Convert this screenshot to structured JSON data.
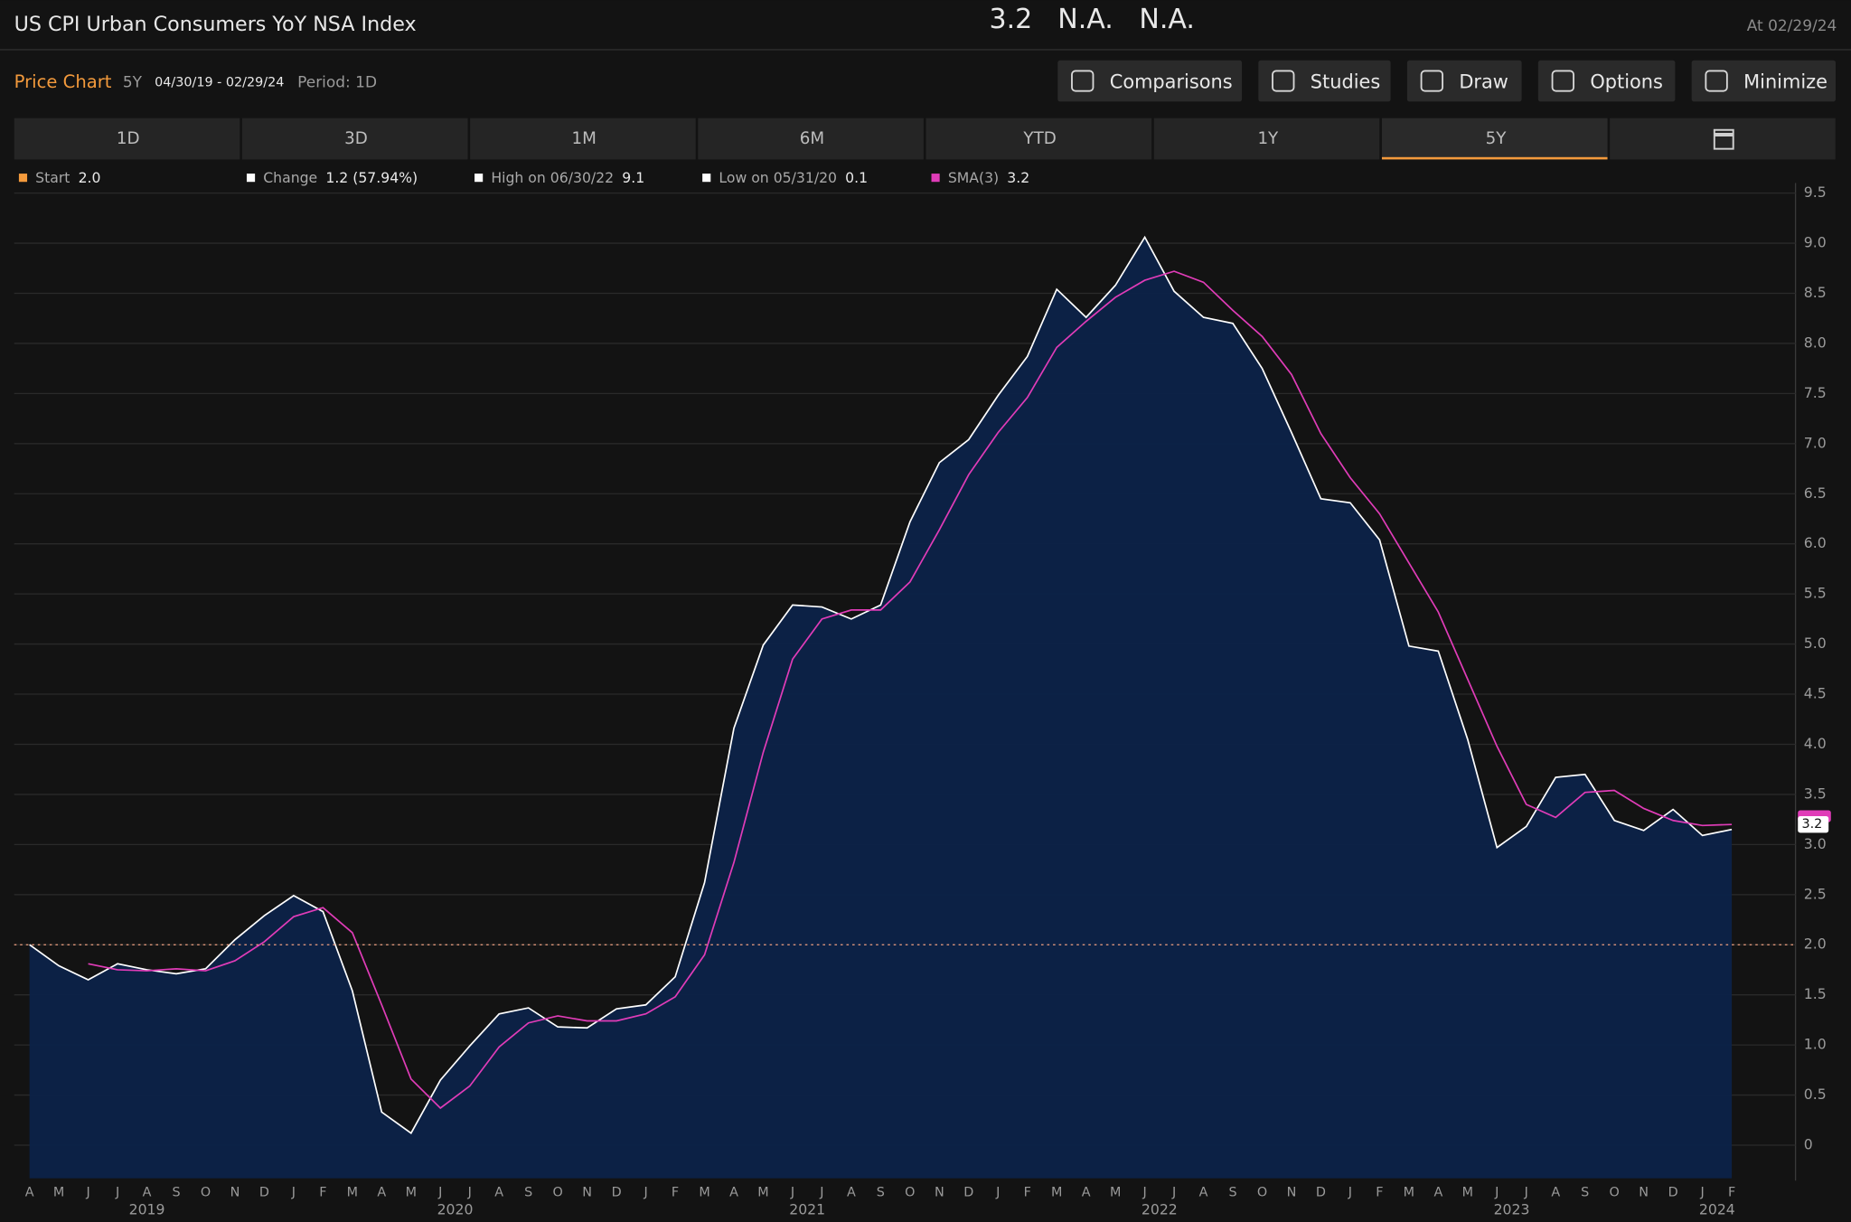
{
  "header": {
    "title": "US CPI Urban Consumers YoY NSA Index",
    "last": "3.2",
    "change": "N.A.",
    "pct_change": "N.A.",
    "as_of": "At 02/29/24"
  },
  "toolbar": {
    "label": "Price Chart",
    "range": "5Y",
    "dates": "04/30/19 - 02/29/24",
    "period": "Period: 1D",
    "buttons": [
      "Comparisons",
      "Studies",
      "Draw",
      "Options",
      "Minimize"
    ]
  },
  "tabs": {
    "items": [
      "1D",
      "3D",
      "1M",
      "6M",
      "YTD",
      "1Y",
      "5Y"
    ],
    "active": 6
  },
  "legend": [
    {
      "name": "Start",
      "value": "2.0",
      "color": "#f39a3c"
    },
    {
      "name": "Change",
      "value": "1.2 (57.94%)",
      "color": "#ffffff"
    },
    {
      "name": "High on 06/30/22",
      "value": "9.1",
      "color": "#ffffff"
    },
    {
      "name": "Low on 05/31/20",
      "value": "0.1",
      "color": "#ffffff"
    },
    {
      "name": "SMA(3)",
      "value": "3.2",
      "color": "#e03cb8"
    }
  ],
  "chart_data": {
    "type": "area",
    "categories": [
      "A",
      "M",
      "J",
      "J",
      "A",
      "S",
      "O",
      "N",
      "D",
      "J",
      "F",
      "M",
      "A",
      "M",
      "J",
      "J",
      "A",
      "S",
      "O",
      "N",
      "D",
      "J",
      "F",
      "M",
      "A",
      "M",
      "J",
      "J",
      "A",
      "S",
      "O",
      "N",
      "D",
      "J",
      "F",
      "M",
      "A",
      "M",
      "J",
      "J",
      "A",
      "S",
      "O",
      "N",
      "D",
      "J",
      "F",
      "M",
      "A",
      "M",
      "J",
      "J",
      "A",
      "S",
      "O",
      "N",
      "D",
      "J",
      "F"
    ],
    "years": [
      "2019",
      "2020",
      "2021",
      "2022",
      "2023",
      "2024"
    ],
    "series": [
      {
        "color": "#ffffff",
        "fill": "#0c2248",
        "values": [
          2.0,
          1.79,
          1.65,
          1.81,
          1.75,
          1.71,
          1.76,
          2.05,
          2.29,
          2.49,
          2.33,
          1.54,
          0.33,
          0.12,
          0.65,
          0.99,
          1.31,
          1.37,
          1.18,
          1.17,
          1.36,
          1.4,
          1.68,
          2.62,
          4.16,
          4.99,
          5.39,
          5.37,
          5.25,
          5.39,
          6.22,
          6.81,
          7.04,
          7.48,
          7.87,
          8.54,
          8.26,
          8.58,
          9.06,
          8.52,
          8.26,
          8.2,
          7.75,
          7.11,
          6.45,
          6.41,
          6.04,
          4.98,
          4.93,
          4.05,
          2.97,
          3.18,
          3.67,
          3.7,
          3.24,
          3.14,
          3.35,
          3.09,
          3.15
        ]
      },
      {
        "color": "#e03cb8",
        "values": [
          null,
          null,
          1.81,
          1.75,
          1.74,
          1.76,
          1.74,
          1.84,
          2.03,
          2.28,
          2.37,
          2.12,
          1.4,
          0.66,
          0.37,
          0.59,
          0.98,
          1.22,
          1.29,
          1.24,
          1.24,
          1.31,
          1.48,
          1.9,
          2.82,
          3.92,
          4.85,
          5.25,
          5.34,
          5.34,
          5.62,
          6.14,
          6.69,
          7.11,
          7.46,
          7.96,
          8.22,
          8.46,
          8.63,
          8.72,
          8.61,
          8.33,
          8.07,
          7.69,
          7.1,
          6.66,
          6.3,
          5.81,
          5.32,
          4.65,
          3.98,
          3.4,
          3.27,
          3.52,
          3.54,
          3.36,
          3.24,
          3.19,
          3.2
        ]
      }
    ],
    "reference_line": 2.0,
    "end_marker": {
      "value": 3.2,
      "label": "3.2"
    },
    "ylim": [
      -0.33,
      9.6
    ],
    "yticks": [
      0,
      0.5,
      {
        "value": 1,
        "label": "1.0"
      },
      1.5,
      {
        "value": 2,
        "label": "2.0"
      },
      2.5,
      {
        "value": 3,
        "label": "3.0"
      },
      3.5,
      {
        "value": 4,
        "label": "4.0"
      },
      4.5,
      {
        "value": 5,
        "label": "5.0"
      },
      5.5,
      {
        "value": 6,
        "label": "6.0"
      },
      6.5,
      {
        "value": 7,
        "label": "7.0"
      },
      7.5,
      {
        "value": 8,
        "label": "8.0"
      },
      8.5,
      {
        "value": 9,
        "label": "9.0"
      },
      9.5
    ],
    "grid": true
  }
}
